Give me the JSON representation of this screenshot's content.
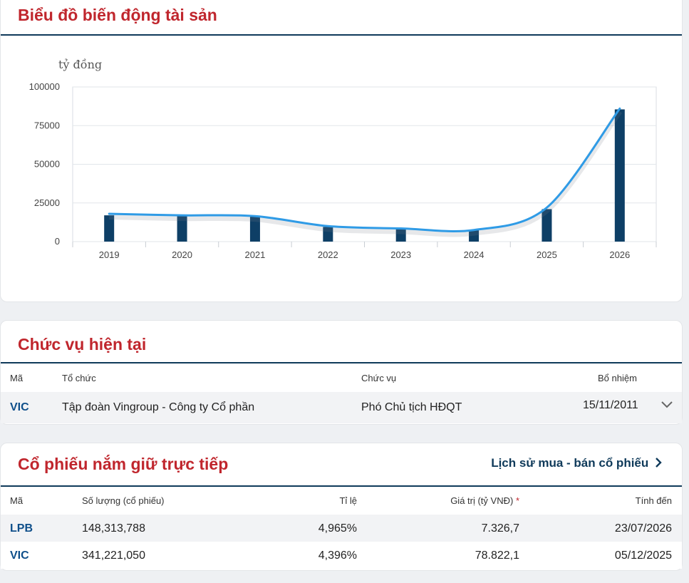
{
  "asset_chart": {
    "title": "Biểu đồ biến động tài sản",
    "unit": "tỷ đồng",
    "chart_data": {
      "type": "bar",
      "categories": [
        "2019",
        "2020",
        "2021",
        "2022",
        "2023",
        "2024",
        "2025",
        "2026"
      ],
      "series": [
        {
          "type": "bar",
          "values": [
            17000,
            16500,
            16500,
            9500,
            8200,
            7500,
            21000,
            85500
          ]
        },
        {
          "type": "line",
          "values": [
            18000,
            17000,
            16500,
            10000,
            8500,
            7500,
            22000,
            86000
          ]
        }
      ],
      "y_ticks": [
        "0",
        "25000",
        "50000",
        "75000",
        "100000"
      ],
      "ylim": [
        0,
        100000
      ],
      "bar_color": "#0e3f66",
      "line_color": "#2f9be6"
    }
  },
  "positions": {
    "title": "Chức vụ hiện tại",
    "headers": {
      "code": "Mã",
      "org": "Tổ chức",
      "role": "Chức vụ",
      "appointed": "Bổ nhiệm"
    },
    "rows": [
      {
        "code": "VIC",
        "org": "Tập đoàn Vingroup - Công ty Cổ phần",
        "role": "Phó Chủ tịch HĐQT",
        "appointed": "15/11/2011"
      }
    ]
  },
  "holdings": {
    "title": "Cổ phiếu nắm giữ trực tiếp",
    "link_label": "Lịch sử mua - bán cổ phiếu",
    "headers": {
      "code": "Mã",
      "quantity": "Số lượng (cổ phiếu)",
      "ratio": "Tỉ lệ",
      "value": "Giá trị (tỷ VNĐ)",
      "value_star": "*",
      "as_of": "Tính đến"
    },
    "rows": [
      {
        "code": "LPB",
        "quantity": "148,313,788",
        "ratio": "4,965%",
        "value": "7.326,7",
        "as_of": "23/07/2026"
      },
      {
        "code": "VIC",
        "quantity": "341,221,050",
        "ratio": "4,396%",
        "value": "78.822,1",
        "as_of": "05/12/2025"
      }
    ]
  },
  "colors": {
    "title_red": "#c0262d",
    "navy": "#0f3a5a",
    "code_blue": "#0f4f8a"
  }
}
